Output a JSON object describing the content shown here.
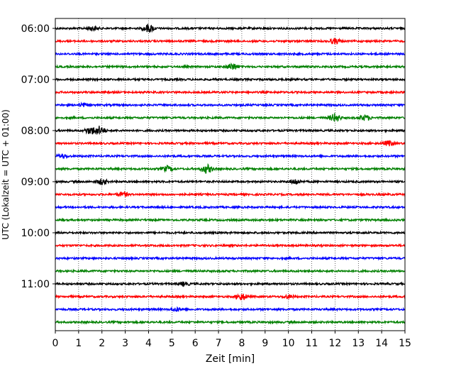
{
  "chart_data": {
    "type": "line",
    "title": "",
    "xlabel": "Zeit  [min]",
    "ylabel": "UTC (Lokalzeit = UTC + 01:00)",
    "xlim": [
      0,
      15
    ],
    "x_ticks": [
      "0",
      "1",
      "2",
      "3",
      "4",
      "5",
      "6",
      "7",
      "8",
      "9",
      "10",
      "11",
      "12",
      "13",
      "14",
      "15"
    ],
    "y_ticks": [
      "06:00",
      "07:00",
      "08:00",
      "09:00",
      "10:00",
      "11:00"
    ],
    "grid": "vertical-dotted",
    "legend": "none",
    "trace_colors": [
      "#000000",
      "#ff0000",
      "#0000ff",
      "#008000"
    ],
    "trace_interval_minutes": 15,
    "traces": [
      {
        "start": "06:00",
        "color": "#000000",
        "events": [
          [
            1.6,
            0.5
          ],
          [
            4.0,
            1.0
          ]
        ]
      },
      {
        "start": "06:15",
        "color": "#ff0000",
        "events": [
          [
            12.0,
            0.6
          ]
        ]
      },
      {
        "start": "06:30",
        "color": "#0000ff",
        "events": []
      },
      {
        "start": "06:45",
        "color": "#008000",
        "events": [
          [
            7.6,
            0.8
          ]
        ]
      },
      {
        "start": "07:00",
        "color": "#000000",
        "events": []
      },
      {
        "start": "07:15",
        "color": "#ff0000",
        "events": []
      },
      {
        "start": "07:30",
        "color": "#0000ff",
        "events": [
          [
            1.2,
            0.4
          ]
        ]
      },
      {
        "start": "07:45",
        "color": "#008000",
        "events": [
          [
            12.0,
            1.0
          ],
          [
            13.3,
            0.6
          ]
        ]
      },
      {
        "start": "08:00",
        "color": "#000000",
        "events": [
          [
            1.5,
            0.8
          ],
          [
            1.9,
            1.0
          ]
        ]
      },
      {
        "start": "08:15",
        "color": "#ff0000",
        "events": [
          [
            14.3,
            0.6
          ]
        ]
      },
      {
        "start": "08:30",
        "color": "#0000ff",
        "events": [
          [
            0.3,
            0.4
          ]
        ]
      },
      {
        "start": "08:45",
        "color": "#008000",
        "events": [
          [
            4.8,
            0.6
          ],
          [
            6.5,
            1.0
          ]
        ]
      },
      {
        "start": "09:00",
        "color": "#000000",
        "events": [
          [
            2.0,
            0.6
          ],
          [
            10.3,
            0.6
          ]
        ]
      },
      {
        "start": "09:15",
        "color": "#ff0000",
        "events": [
          [
            2.9,
            0.5
          ]
        ]
      },
      {
        "start": "09:30",
        "color": "#0000ff",
        "events": []
      },
      {
        "start": "09:45",
        "color": "#008000",
        "events": []
      },
      {
        "start": "10:00",
        "color": "#000000",
        "events": []
      },
      {
        "start": "10:15",
        "color": "#ff0000",
        "events": []
      },
      {
        "start": "10:30",
        "color": "#0000ff",
        "events": []
      },
      {
        "start": "10:45",
        "color": "#008000",
        "events": []
      },
      {
        "start": "11:00",
        "color": "#000000",
        "events": [
          [
            5.5,
            0.4
          ]
        ]
      },
      {
        "start": "11:15",
        "color": "#ff0000",
        "events": [
          [
            8.0,
            0.8
          ],
          [
            10.0,
            0.4
          ]
        ]
      },
      {
        "start": "11:30",
        "color": "#0000ff",
        "events": [
          [
            5.2,
            0.4
          ]
        ]
      },
      {
        "start": "11:45",
        "color": "#008000",
        "events": []
      }
    ]
  }
}
